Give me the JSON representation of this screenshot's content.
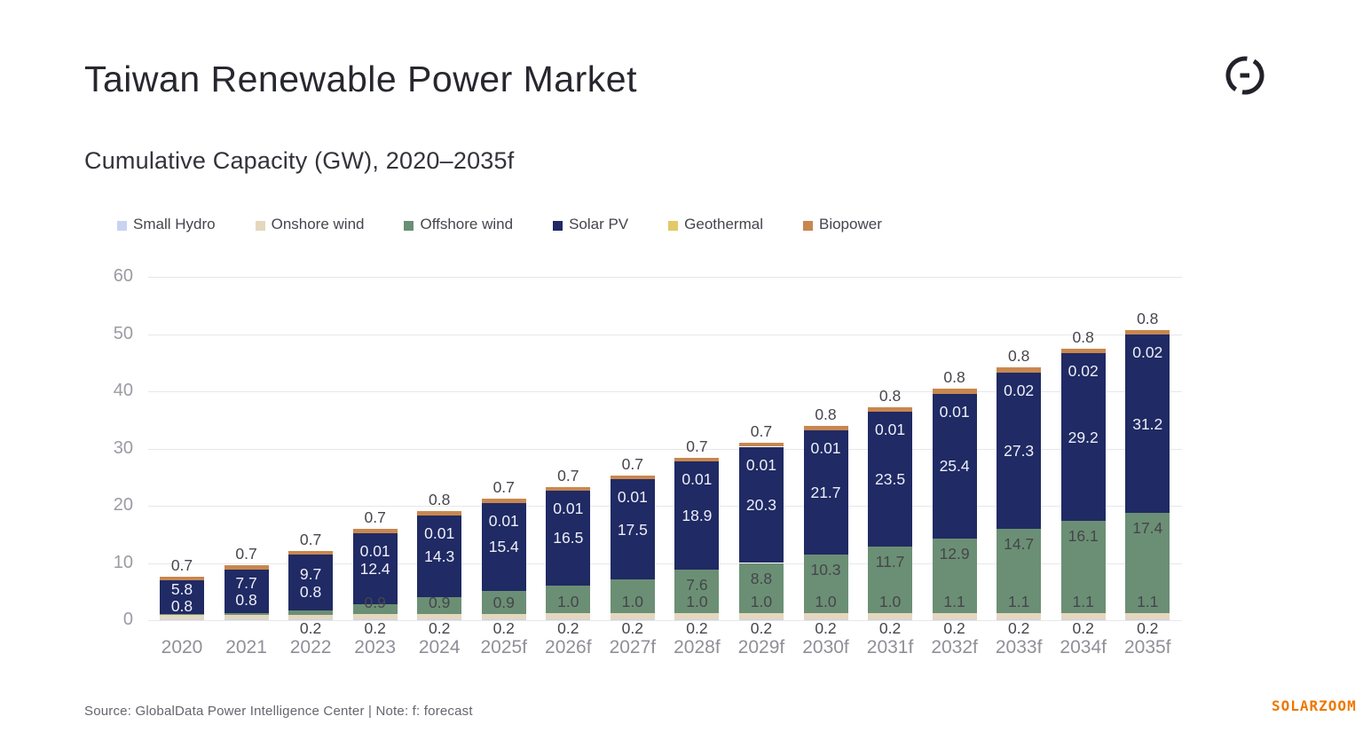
{
  "header": {
    "title": "Taiwan Renewable Power Market",
    "subtitle": "Cumulative Capacity (GW), 2020–2035f",
    "logo_icon": "globaldata-mark"
  },
  "footer": {
    "source_note": "Source: GlobalData Power Intelligence Center | Note: f: forecast",
    "watermark": "SOLARZOOM",
    "watermark_color": "#ee7700"
  },
  "colors": {
    "title_text": "#27272f",
    "axis_text": "#9b9ba3",
    "gridline": "#e7e7eb",
    "label_dark": "#45454d",
    "label_light": "#eef0f7"
  },
  "chart_data": {
    "type": "bar",
    "stacked": true,
    "title": "Cumulative Capacity (GW), 2020–2035f",
    "xlabel": "",
    "ylabel": "GW",
    "ylim": [
      0,
      60
    ],
    "yticks": [
      0,
      10,
      20,
      30,
      40,
      50,
      60
    ],
    "grid": true,
    "legend_position": "top",
    "categories": [
      "2020",
      "2021",
      "2022",
      "2023",
      "2024",
      "2025f",
      "2026f",
      "2027f",
      "2028f",
      "2029f",
      "2030f",
      "2031f",
      "2032f",
      "2033f",
      "2034f",
      "2035f"
    ],
    "series_order_bottom_to_top": [
      "Small Hydro",
      "Onshore wind",
      "Offshore wind",
      "Solar PV",
      "Geothermal",
      "Biopower"
    ],
    "series": [
      {
        "name": "Small Hydro",
        "color": "#c9d3f1",
        "values": [
          0.2,
          0.2,
          0.2,
          0.2,
          0.2,
          0.2,
          0.2,
          0.2,
          0.2,
          0.2,
          0.2,
          0.2,
          0.2,
          0.2,
          0.2,
          0.2
        ]
      },
      {
        "name": "Onshore wind",
        "color": "#e4d7bd",
        "values": [
          0.8,
          0.8,
          0.8,
          0.9,
          0.9,
          0.9,
          1.0,
          1.0,
          1.0,
          1.0,
          1.0,
          1.0,
          1.1,
          1.1,
          1.1,
          1.1
        ]
      },
      {
        "name": "Offshore wind",
        "color": "#6b8f74",
        "values": [
          0.1,
          0.2,
          0.7,
          1.7,
          2.9,
          4.0,
          4.9,
          5.9,
          7.6,
          8.8,
          10.3,
          11.7,
          12.9,
          14.7,
          16.1,
          17.4
        ]
      },
      {
        "name": "Solar PV",
        "color": "#202a64",
        "values": [
          5.8,
          7.7,
          9.7,
          12.4,
          14.3,
          15.4,
          16.5,
          17.5,
          18.9,
          20.3,
          21.7,
          23.5,
          25.4,
          27.3,
          29.2,
          31.2
        ]
      },
      {
        "name": "Geothermal",
        "color": "#e3c967",
        "values": [
          0,
          0,
          0,
          0.01,
          0.01,
          0.01,
          0.01,
          0.01,
          0.01,
          0.01,
          0.01,
          0.01,
          0.01,
          0.02,
          0.02,
          0.02
        ]
      },
      {
        "name": "Biopower",
        "color": "#c8874f",
        "values": [
          0.7,
          0.7,
          0.7,
          0.7,
          0.8,
          0.7,
          0.7,
          0.7,
          0.7,
          0.7,
          0.8,
          0.8,
          0.8,
          0.8,
          0.8,
          0.8
        ]
      }
    ],
    "bar_labels": [
      {
        "biopower": "0.7",
        "geothermal": null,
        "solar_pv": "5.8",
        "offshore_wind": null,
        "onshore_wind": "0.8",
        "small_hydro": null
      },
      {
        "biopower": "0.7",
        "geothermal": null,
        "solar_pv": "7.7",
        "offshore_wind": null,
        "onshore_wind": "0.8",
        "small_hydro": null
      },
      {
        "biopower": "0.7",
        "geothermal": null,
        "solar_pv": "9.7",
        "offshore_wind": null,
        "onshore_wind": "0.8",
        "small_hydro": "0.2"
      },
      {
        "biopower": "0.7",
        "geothermal": "0.01",
        "solar_pv": "12.4",
        "offshore_wind": null,
        "onshore_wind": "0.9",
        "small_hydro": "0.2"
      },
      {
        "biopower": "0.8",
        "geothermal": "0.01",
        "solar_pv": "14.3",
        "offshore_wind": null,
        "onshore_wind": "0.9",
        "small_hydro": "0.2"
      },
      {
        "biopower": "0.7",
        "geothermal": "0.01",
        "solar_pv": "15.4",
        "offshore_wind": null,
        "onshore_wind": "0.9",
        "small_hydro": "0.2"
      },
      {
        "biopower": "0.7",
        "geothermal": "0.01",
        "solar_pv": "16.5",
        "offshore_wind": null,
        "onshore_wind": "1.0",
        "small_hydro": "0.2"
      },
      {
        "biopower": "0.7",
        "geothermal": "0.01",
        "solar_pv": "17.5",
        "offshore_wind": null,
        "onshore_wind": "1.0",
        "small_hydro": "0.2"
      },
      {
        "biopower": "0.7",
        "geothermal": "0.01",
        "solar_pv": "18.9",
        "offshore_wind": "7.6",
        "onshore_wind": "1.0",
        "small_hydro": "0.2"
      },
      {
        "biopower": "0.7",
        "geothermal": "0.01",
        "solar_pv": "20.3",
        "offshore_wind": "8.8",
        "onshore_wind": "1.0",
        "small_hydro": "0.2"
      },
      {
        "biopower": "0.8",
        "geothermal": "0.01",
        "solar_pv": "21.7",
        "offshore_wind": "10.3",
        "onshore_wind": "1.0",
        "small_hydro": "0.2"
      },
      {
        "biopower": "0.8",
        "geothermal": "0.01",
        "solar_pv": "23.5",
        "offshore_wind": "11.7",
        "onshore_wind": "1.0",
        "small_hydro": "0.2"
      },
      {
        "biopower": "0.8",
        "geothermal": "0.01",
        "solar_pv": "25.4",
        "offshore_wind": "12.9",
        "onshore_wind": "1.1",
        "small_hydro": "0.2"
      },
      {
        "biopower": "0.8",
        "geothermal": "0.02",
        "solar_pv": "27.3",
        "offshore_wind": "14.7",
        "onshore_wind": "1.1",
        "small_hydro": "0.2"
      },
      {
        "biopower": "0.8",
        "geothermal": "0.02",
        "solar_pv": "29.2",
        "offshore_wind": "16.1",
        "onshore_wind": "1.1",
        "small_hydro": "0.2"
      },
      {
        "biopower": "0.8",
        "geothermal": "0.02",
        "solar_pv": "31.2",
        "offshore_wind": "17.4",
        "onshore_wind": "1.1",
        "small_hydro": "0.2"
      }
    ],
    "note": "Offshore wind segments for 2020-2027f carry no printed value label; their values are estimated from bar heights."
  }
}
